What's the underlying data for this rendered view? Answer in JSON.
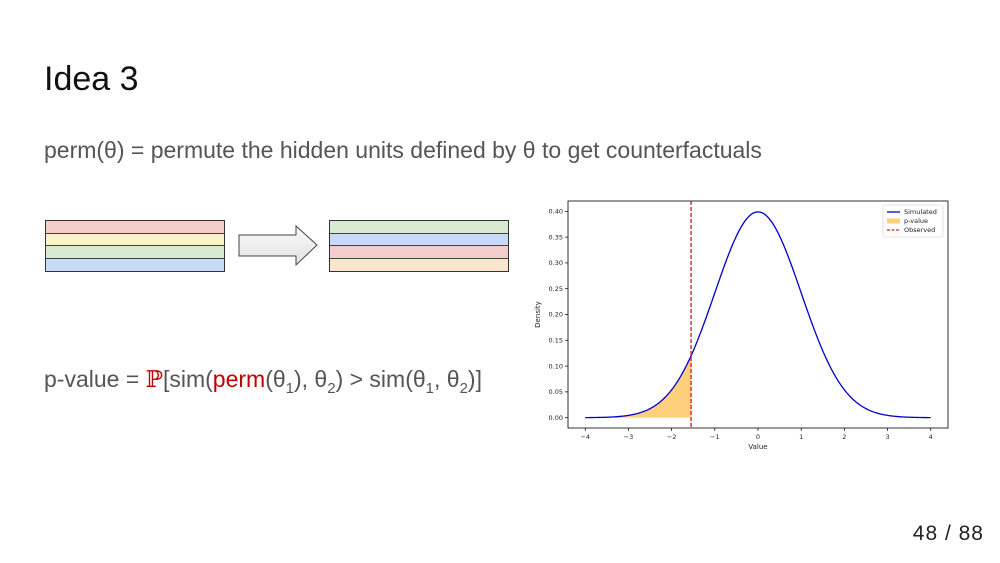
{
  "slide": {
    "title": "Idea 3",
    "subtitle": "perm(θ) = permute the hidden units defined by θ to get counterfactuals",
    "page_number": "48 / 88"
  },
  "diagram": {
    "left_rows": [
      "#f4cccc",
      "#fdf2cc",
      "#d9ead3",
      "#c9daf8"
    ],
    "right_rows": [
      "#d9ead3",
      "#c9daf8",
      "#f4cccc",
      "#fce5cd"
    ]
  },
  "formula": {
    "lhs": "p-value = ",
    "prob_symbol": "ℙ",
    "open": "[sim(",
    "perm": "perm",
    "theta_a": "(θ",
    "sub1": "1",
    "mid1": "), θ",
    "sub2": "2",
    "mid2": ") > sim(θ",
    "sub3": "1",
    "mid3": ", θ",
    "sub4": "2",
    "close": ")]",
    "accent_color": "#c00000"
  },
  "chart_data": {
    "type": "line",
    "series": [
      {
        "name": "Simulated",
        "distribution": "standard normal density",
        "mean": 0,
        "sd": 1,
        "x_range": [
          -4,
          4
        ],
        "color": "#0000cc"
      }
    ],
    "shaded_region": {
      "name": "p-value",
      "x_range": [
        -4,
        -1.55
      ],
      "color": "#ffc864"
    },
    "observed_line": {
      "name": "Observed",
      "x": -1.55,
      "color": "#d62728",
      "style": "dashed"
    },
    "legend": [
      "Simulated",
      "p-value",
      "Observed"
    ],
    "legend_position": "top-right",
    "xlabel": "Value",
    "ylabel": "Density",
    "xlim": [
      -4.4,
      4.4
    ],
    "ylim": [
      -0.02,
      0.42
    ],
    "xticks": [
      -4,
      -3,
      -2,
      -1,
      0,
      1,
      2,
      3,
      4
    ],
    "xtick_labels": [
      "−4",
      "−3",
      "−2",
      "−1",
      "0",
      "1",
      "2",
      "3",
      "4"
    ],
    "yticks": [
      0.0,
      0.05,
      0.1,
      0.15,
      0.2,
      0.25,
      0.3,
      0.35,
      0.4
    ],
    "ytick_labels": [
      "0.00",
      "0.05",
      "0.10",
      "0.15",
      "0.20",
      "0.25",
      "0.30",
      "0.35",
      "0.40"
    ]
  }
}
